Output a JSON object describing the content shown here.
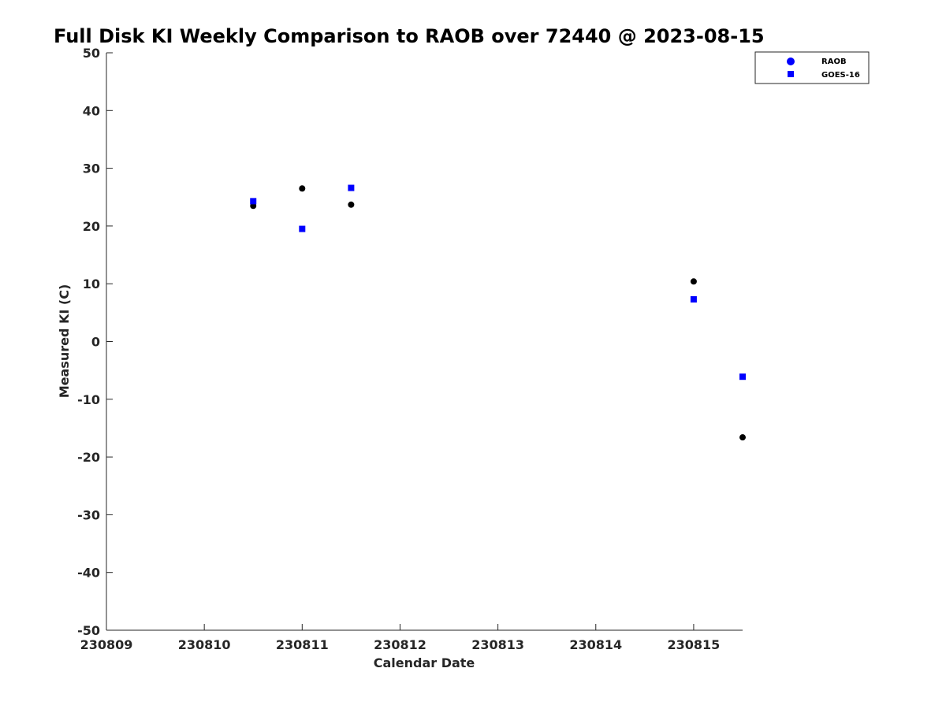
{
  "chart_data": {
    "type": "scatter",
    "title": "Full Disk KI Weekly Comparison to RAOB over 72440 @ 2023-08-15",
    "xlabel": "Calendar Date",
    "ylabel": "Measured KI (C)",
    "xlim": [
      "230809",
      "230815.5"
    ],
    "ylim": [
      -50,
      50
    ],
    "x_ticks": [
      "230809",
      "230810",
      "230811",
      "230812",
      "230813",
      "230814",
      "230815"
    ],
    "y_ticks": [
      "50",
      "40",
      "30",
      "20",
      "10",
      "0",
      "-10",
      "-20",
      "-30",
      "-40",
      "-50"
    ],
    "grid": false,
    "legend_position": "top-right",
    "series": [
      {
        "name": "RAOB",
        "marker": "circle",
        "color": "#000000",
        "legend_color": "#0000ff",
        "points": [
          {
            "x": "230810.5",
            "y": 23.5
          },
          {
            "x": "230811",
            "y": 26.5
          },
          {
            "x": "230811.5",
            "y": 23.7
          },
          {
            "x": "230815",
            "y": 10.4
          },
          {
            "x": "230815.5",
            "y": -16.6
          }
        ]
      },
      {
        "name": "GOES-16",
        "marker": "square",
        "color": "#0000ff",
        "legend_color": "#0000ff",
        "points": [
          {
            "x": "230810.5",
            "y": 24.3
          },
          {
            "x": "230811",
            "y": 19.5
          },
          {
            "x": "230811.5",
            "y": 26.6
          },
          {
            "x": "230815",
            "y": 7.3
          },
          {
            "x": "230815.5",
            "y": -6.1
          }
        ]
      }
    ]
  }
}
